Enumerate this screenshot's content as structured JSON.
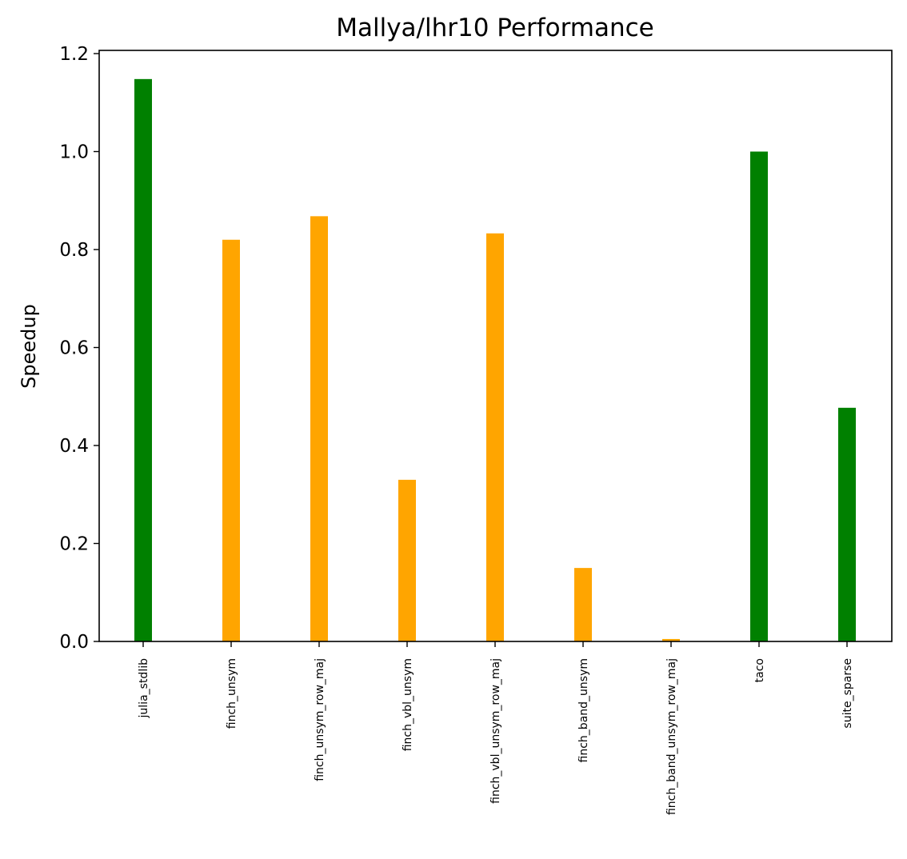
{
  "chart_data": {
    "type": "bar",
    "title": "Mallya/lhr10 Performance",
    "xlabel": "",
    "ylabel": "Speedup",
    "ylim": [
      0,
      1.2
    ],
    "yticks": [
      "0.0",
      "0.2",
      "0.4",
      "0.6",
      "0.8",
      "1.0",
      "1.2"
    ],
    "categories": [
      "julia_stdlib",
      "finch_unsym",
      "finch_unsym_row_maj",
      "finch_vbl_unsym",
      "finch_vbl_unsym_row_maj",
      "finch_band_unsym",
      "finch_band_unsym_row_maj",
      "taco",
      "suite_sparse"
    ],
    "values": [
      1.148,
      0.82,
      0.868,
      0.33,
      0.833,
      0.15,
      0.005,
      1.0,
      0.477
    ],
    "bar_colors": [
      "#008000",
      "#ffa500",
      "#ffa500",
      "#ffa500",
      "#ffa500",
      "#ffa500",
      "#ffa500",
      "#008000",
      "#008000"
    ],
    "grid": false,
    "legend": "none"
  }
}
